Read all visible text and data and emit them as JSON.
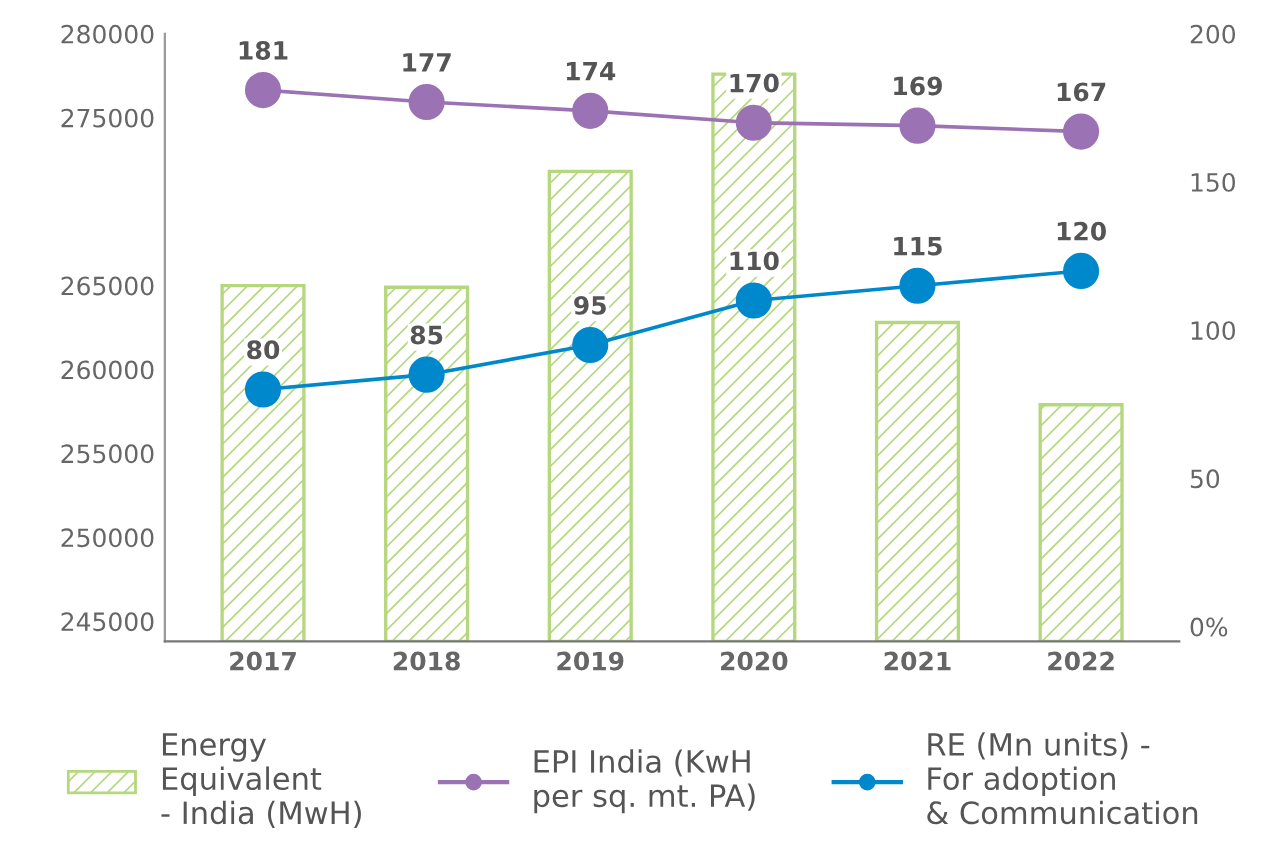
{
  "chart_data": {
    "type": "bar",
    "categories": [
      "2017",
      "2018",
      "2019",
      "2020",
      "2021",
      "2022"
    ],
    "series": [
      {
        "name": "Energy\nEquivalent\n- India (MwH)",
        "color": "#b5d77e",
        "values": [
          265000,
          264900,
          271800,
          277600,
          262800,
          257900
        ]
      },
      {
        "name": "EPI India (KwH\nper sq. mt. PA)",
        "type": "line",
        "axis": "y2",
        "color": "#9b72b3",
        "marker": "circle",
        "data_labels": true,
        "values": [
          181,
          177,
          174,
          170,
          169,
          167
        ]
      },
      {
        "name": "RE (Mn units) -\nFor adoption\n& Communication",
        "type": "line",
        "axis": "y2",
        "color": "#0088cc",
        "marker": "circle",
        "data_labels": true,
        "values": [
          80,
          85,
          95,
          110,
          115,
          120
        ]
      }
    ],
    "ylim": [
      243800,
      280000
    ],
    "yticks": [
      245000,
      250000,
      255000,
      260000,
      265000,
      275000,
      280000
    ],
    "y2lim": [
      -5,
      200
    ],
    "y2ticks": [
      {
        "value": 0,
        "label": "0%"
      },
      50,
      100,
      150,
      200
    ],
    "grid": false,
    "legend": "bottom"
  }
}
